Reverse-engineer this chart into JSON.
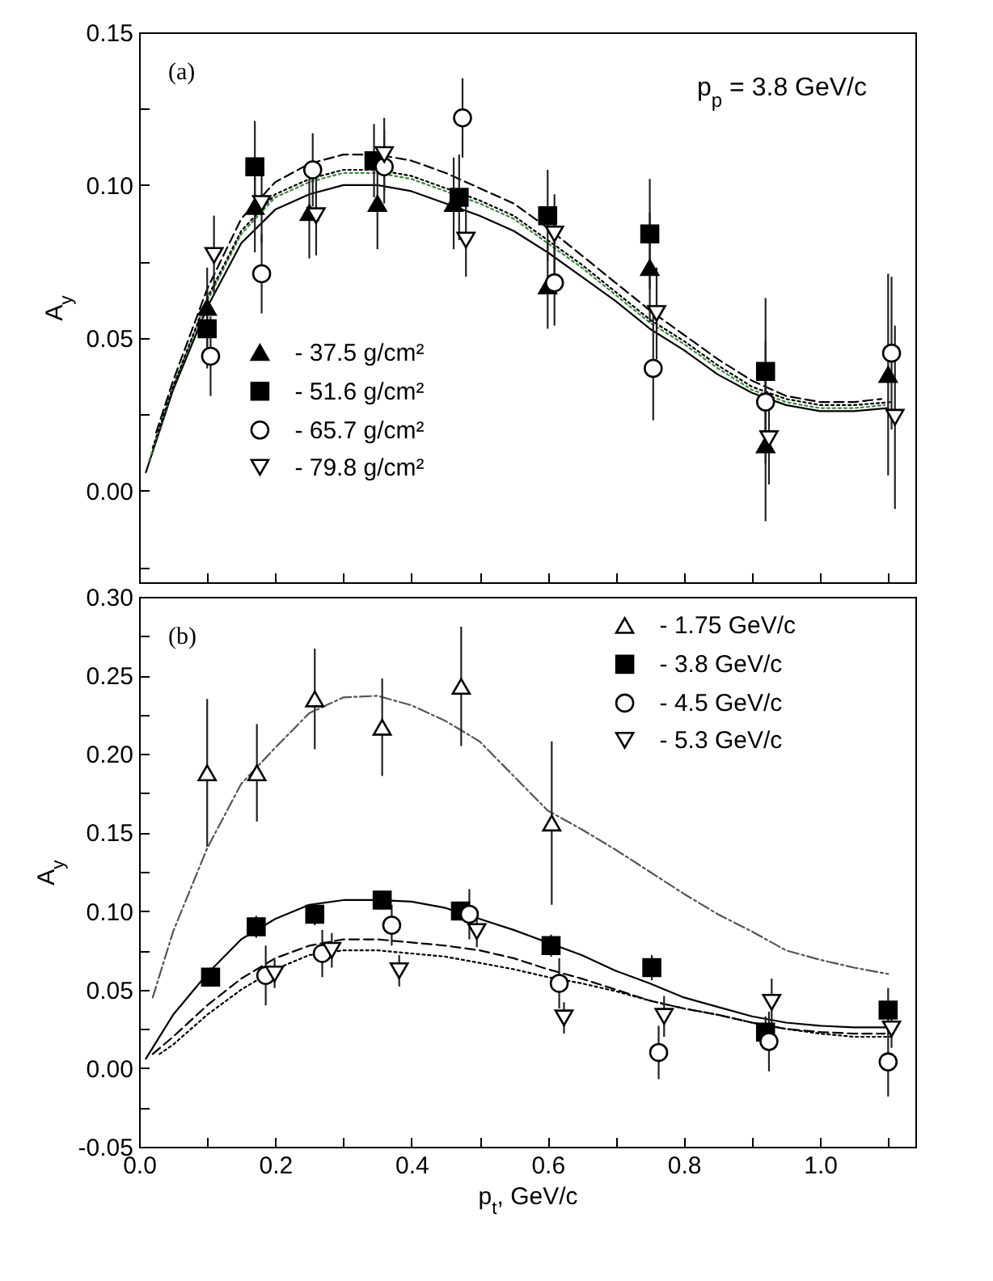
{
  "chart_data": [
    {
      "type": "scatter",
      "ylabel": "A$_{y}$",
      "xlim": [
        0,
        1.14
      ],
      "ylim": [
        -0.03,
        0.15
      ],
      "xticks": [
        0,
        0.1,
        0.2,
        0.3,
        0.4,
        0.5,
        0.6,
        0.7,
        0.8,
        0.9,
        1,
        1.1
      ],
      "yticks": [
        {
          "value": -0.025,
          "label": null
        },
        {
          "value": 0,
          "label": "0.00"
        },
        {
          "value": 0.025,
          "label": null
        },
        {
          "value": 0.05,
          "label": "0.05"
        },
        {
          "value": 0.075,
          "label": null
        },
        {
          "value": 0.1,
          "label": "0.10"
        },
        {
          "value": 0.125,
          "label": null
        },
        {
          "value": 0.15,
          "label": "0.15"
        }
      ],
      "tick_labels": "y",
      "grid": false,
      "legend": "bottom left",
      "annotations": [
        "(a)",
        "p$_{p}$ = 3.8 GeV/c"
      ],
      "series": [
        {
          "name": "- 37.5 g/cm²",
          "color": "#000000",
          "marker": "triangle",
          "x": [
            0.1,
            0.17,
            0.25,
            0.35,
            0.462,
            0.6,
            0.75,
            0.92,
            1.1
          ],
          "values": [
            0.06,
            0.093,
            0.091,
            0.094,
            0.094,
            0.067,
            0.073,
            0.015,
            0.038
          ],
          "errors": [
            0.013,
            0.015,
            0.015,
            0.015,
            0.015,
            0.014,
            0.018,
            0.025,
            0.033
          ]
        },
        {
          "name": "- 51.6 g/cm²",
          "color": "#000000",
          "marker": "square",
          "x": [
            0.1,
            0.17,
            0.345,
            0.47,
            0.6,
            0.75,
            0.92
          ],
          "values": [
            0.053,
            0.106,
            0.108,
            0.096,
            0.09,
            0.084,
            0.039
          ],
          "errors": [
            0.013,
            0.015,
            0.012,
            0.014,
            0.015,
            0.018,
            0.024
          ]
        },
        {
          "name": "- 65.7 g/cm²",
          "color": "#ffffff",
          "marker": "circle",
          "x": [
            0.105,
            0.18,
            0.255,
            0.36,
            0.475,
            0.61,
            0.755,
            0.92,
            1.105
          ],
          "values": [
            0.044,
            0.071,
            0.105,
            0.106,
            0.122,
            0.068,
            0.04,
            0.029,
            0.045
          ],
          "errors": [
            0.013,
            0.013,
            0.012,
            0.012,
            0.013,
            0.014,
            0.017,
            0.02,
            0.025
          ]
        },
        {
          "name": "- 79.8 g/cm²",
          "color": "#ffffff",
          "marker": "triangle-down",
          "x": [
            0.11,
            0.18,
            0.26,
            0.36,
            0.48,
            0.61,
            0.76,
            0.925,
            1.11
          ],
          "values": [
            0.077,
            0.094,
            0.09,
            0.11,
            0.082,
            0.084,
            0.058,
            0.017,
            0.024
          ],
          "errors": [
            0.013,
            0.013,
            0.013,
            0.012,
            0.012,
            0.013,
            0.015,
            0.015,
            0.03
          ]
        },
        {
          "type": "line",
          "color": "#000000",
          "line_style": "solid",
          "x": [
            0.01,
            0.05,
            0.1,
            0.15,
            0.2,
            0.25,
            0.3,
            0.35,
            0.4,
            0.45,
            0.5,
            0.55,
            0.6,
            0.65,
            0.7,
            0.75,
            0.8,
            0.85,
            0.9,
            0.95,
            1.0,
            1.05,
            1.1
          ],
          "values": [
            0.006,
            0.033,
            0.06,
            0.081,
            0.092,
            0.097,
            0.1,
            0.1,
            0.098,
            0.094,
            0.09,
            0.085,
            0.078,
            0.07,
            0.062,
            0.053,
            0.046,
            0.038,
            0.032,
            0.028,
            0.026,
            0.026,
            0.027
          ]
        },
        {
          "type": "line",
          "color": "#3a8a3a",
          "line_style": "dotted",
          "x": [
            0.015,
            0.05,
            0.1,
            0.15,
            0.2,
            0.25,
            0.3,
            0.35,
            0.4,
            0.45,
            0.5,
            0.55,
            0.6,
            0.65,
            0.7,
            0.75,
            0.8,
            0.85,
            0.9,
            0.95,
            1.0,
            1.05,
            1.095
          ],
          "values": [
            0.01,
            0.034,
            0.062,
            0.084,
            0.096,
            0.101,
            0.104,
            0.104,
            0.102,
            0.098,
            0.094,
            0.089,
            0.081,
            0.073,
            0.064,
            0.055,
            0.048,
            0.04,
            0.033,
            0.029,
            0.027,
            0.027,
            0.028
          ]
        },
        {
          "type": "line",
          "color": "#000000",
          "line_style": "dotted",
          "x": [
            0.02,
            0.05,
            0.1,
            0.15,
            0.2,
            0.25,
            0.3,
            0.35,
            0.4,
            0.45,
            0.5,
            0.55,
            0.6,
            0.65,
            0.7,
            0.75,
            0.8,
            0.85,
            0.9,
            0.95,
            1.0,
            1.05,
            1.105
          ],
          "values": [
            0.014,
            0.034,
            0.063,
            0.085,
            0.097,
            0.102,
            0.105,
            0.105,
            0.103,
            0.099,
            0.095,
            0.09,
            0.082,
            0.074,
            0.065,
            0.056,
            0.049,
            0.041,
            0.034,
            0.03,
            0.028,
            0.028,
            0.029
          ]
        },
        {
          "type": "line",
          "color": "#000000",
          "line_style": "dashed",
          "x": [
            0.025,
            0.05,
            0.1,
            0.15,
            0.2,
            0.25,
            0.3,
            0.35,
            0.4,
            0.45,
            0.5,
            0.55,
            0.6,
            0.65,
            0.7,
            0.75,
            0.8,
            0.85,
            0.9,
            0.95,
            1.0,
            1.05,
            1.09
          ],
          "values": [
            0.019,
            0.036,
            0.066,
            0.089,
            0.101,
            0.107,
            0.11,
            0.11,
            0.108,
            0.104,
            0.099,
            0.094,
            0.086,
            0.077,
            0.068,
            0.059,
            0.051,
            0.043,
            0.036,
            0.031,
            0.029,
            0.029,
            0.03
          ]
        }
      ]
    },
    {
      "type": "scatter",
      "xlabel": "p$_{t}$, GeV/c",
      "ylabel": "A$_{y}$",
      "xlim": [
        0,
        1.14
      ],
      "ylim": [
        -0.05,
        0.3
      ],
      "xticks": [
        {
          "value": 0,
          "label": "0.0"
        },
        {
          "value": 0.1,
          "label": null
        },
        {
          "value": 0.2,
          "label": "0.2"
        },
        {
          "value": 0.3,
          "label": null
        },
        {
          "value": 0.4,
          "label": "0.4"
        },
        {
          "value": 0.5,
          "label": null
        },
        {
          "value": 0.6,
          "label": "0.6"
        },
        {
          "value": 0.7,
          "label": null
        },
        {
          "value": 0.8,
          "label": "0.8"
        },
        {
          "value": 0.9,
          "label": null
        },
        {
          "value": 1,
          "label": "1.0"
        },
        {
          "value": 1.1,
          "label": null
        }
      ],
      "yticks": [
        {
          "value": -0.05,
          "label": "-0.05"
        },
        {
          "value": -0.025,
          "label": null
        },
        {
          "value": 0,
          "label": "0.00"
        },
        {
          "value": 0.025,
          "label": null
        },
        {
          "value": 0.05,
          "label": "0.05"
        },
        {
          "value": 0.075,
          "label": null
        },
        {
          "value": 0.1,
          "label": "0.10"
        },
        {
          "value": 0.125,
          "label": null
        },
        {
          "value": 0.15,
          "label": "0.15"
        },
        {
          "value": 0.175,
          "label": null
        },
        {
          "value": 0.2,
          "label": "0.20"
        },
        {
          "value": 0.225,
          "label": null
        },
        {
          "value": 0.25,
          "label": "0.25"
        },
        {
          "value": 0.275,
          "label": null
        },
        {
          "value": 0.3,
          "label": "0.30"
        }
      ],
      "grid": false,
      "legend": "top right",
      "annotations": [
        "(b)"
      ],
      "series": [
        {
          "name": "- 1.75 GeV/c",
          "color": "#ffffff",
          "marker": "triangle",
          "x": [
            0.1,
            0.173,
            0.258,
            0.357,
            0.473,
            0.606
          ],
          "values": [
            0.188,
            0.188,
            0.235,
            0.217,
            0.243,
            0.156
          ],
          "errors": [
            0.047,
            0.031,
            0.032,
            0.031,
            0.038,
            0.052
          ]
        },
        {
          "name": "- 3.8 GeV/c",
          "color": "#000000",
          "marker": "square",
          "x": [
            0.105,
            0.172,
            0.258,
            0.357,
            0.472,
            0.605,
            0.753,
            0.92,
            1.1
          ],
          "values": [
            0.058,
            0.09,
            0.098,
            0.107,
            0.1,
            0.078,
            0.064,
            0.023,
            0.037
          ],
          "errors": [
            0.006,
            0.007,
            0.007,
            0.006,
            0.006,
            0.007,
            0.008,
            0.01,
            0.014
          ]
        },
        {
          "name": "- 4.5 GeV/c",
          "color": "#ffffff",
          "marker": "circle",
          "x": [
            0.186,
            0.269,
            0.371,
            0.485,
            0.617,
            0.763,
            0.925,
            1.1
          ],
          "values": [
            0.059,
            0.073,
            0.091,
            0.098,
            0.054,
            0.01,
            0.017,
            0.004
          ],
          "errors": [
            0.019,
            0.015,
            0.013,
            0.016,
            0.016,
            0.017,
            0.019,
            0.022
          ]
        },
        {
          "name": "- 5.3 GeV/c",
          "color": "#ffffff",
          "marker": "triangle-down",
          "x": [
            0.199,
            0.283,
            0.382,
            0.496,
            0.624,
            0.771,
            0.929,
            1.105
          ],
          "values": [
            0.06,
            0.075,
            0.062,
            0.087,
            0.032,
            0.033,
            0.042,
            0.025
          ],
          "errors": [
            0.009,
            0.011,
            0.01,
            0.01,
            0.01,
            0.013,
            0.015,
            0.012
          ]
        },
        {
          "type": "line",
          "color": "#555555",
          "line_style": "dashdot",
          "x": [
            0.02,
            0.05,
            0.1,
            0.15,
            0.2,
            0.25,
            0.3,
            0.35,
            0.4,
            0.45,
            0.5,
            0.55,
            0.6,
            0.65,
            0.7,
            0.75,
            0.8,
            0.85,
            0.9,
            0.95,
            1.0,
            1.05,
            1.1
          ],
          "values": [
            0.045,
            0.087,
            0.14,
            0.181,
            0.204,
            0.226,
            0.236,
            0.237,
            0.231,
            0.221,
            0.208,
            0.186,
            0.164,
            0.152,
            0.139,
            0.125,
            0.111,
            0.098,
            0.087,
            0.075,
            0.069,
            0.064,
            0.06
          ]
        },
        {
          "type": "line",
          "color": "#000000",
          "line_style": "solid",
          "x": [
            0.01,
            0.05,
            0.1,
            0.15,
            0.2,
            0.25,
            0.3,
            0.35,
            0.4,
            0.45,
            0.5,
            0.55,
            0.6,
            0.65,
            0.7,
            0.75,
            0.8,
            0.85,
            0.9,
            0.95,
            1.0,
            1.05,
            1.1
          ],
          "values": [
            0.006,
            0.034,
            0.06,
            0.082,
            0.095,
            0.104,
            0.107,
            0.107,
            0.106,
            0.102,
            0.095,
            0.088,
            0.08,
            0.072,
            0.062,
            0.054,
            0.045,
            0.039,
            0.033,
            0.029,
            0.027,
            0.026,
            0.026
          ]
        },
        {
          "type": "line",
          "color": "#000000",
          "line_style": "dashed",
          "x": [
            0.02,
            0.05,
            0.1,
            0.15,
            0.2,
            0.25,
            0.3,
            0.35,
            0.4,
            0.45,
            0.5,
            0.55,
            0.6,
            0.65,
            0.7,
            0.75,
            0.8,
            0.85,
            0.9,
            0.95,
            1.0,
            1.05,
            1.095
          ],
          "values": [
            0.009,
            0.02,
            0.04,
            0.057,
            0.07,
            0.078,
            0.082,
            0.082,
            0.08,
            0.078,
            0.075,
            0.07,
            0.063,
            0.057,
            0.05,
            0.043,
            0.038,
            0.034,
            0.029,
            0.025,
            0.023,
            0.022,
            0.022
          ]
        },
        {
          "type": "line",
          "color": "#000000",
          "line_style": "dotted",
          "x": [
            0.03,
            0.05,
            0.1,
            0.15,
            0.2,
            0.25,
            0.3,
            0.35,
            0.4,
            0.45,
            0.5,
            0.55,
            0.6,
            0.65,
            0.7,
            0.75,
            0.8,
            0.85,
            0.9,
            0.95,
            1.0,
            1.05,
            1.105
          ],
          "values": [
            0.009,
            0.015,
            0.034,
            0.05,
            0.063,
            0.072,
            0.075,
            0.075,
            0.073,
            0.071,
            0.067,
            0.063,
            0.058,
            0.054,
            0.049,
            0.043,
            0.038,
            0.034,
            0.029,
            0.025,
            0.022,
            0.02,
            0.02
          ]
        }
      ]
    }
  ]
}
